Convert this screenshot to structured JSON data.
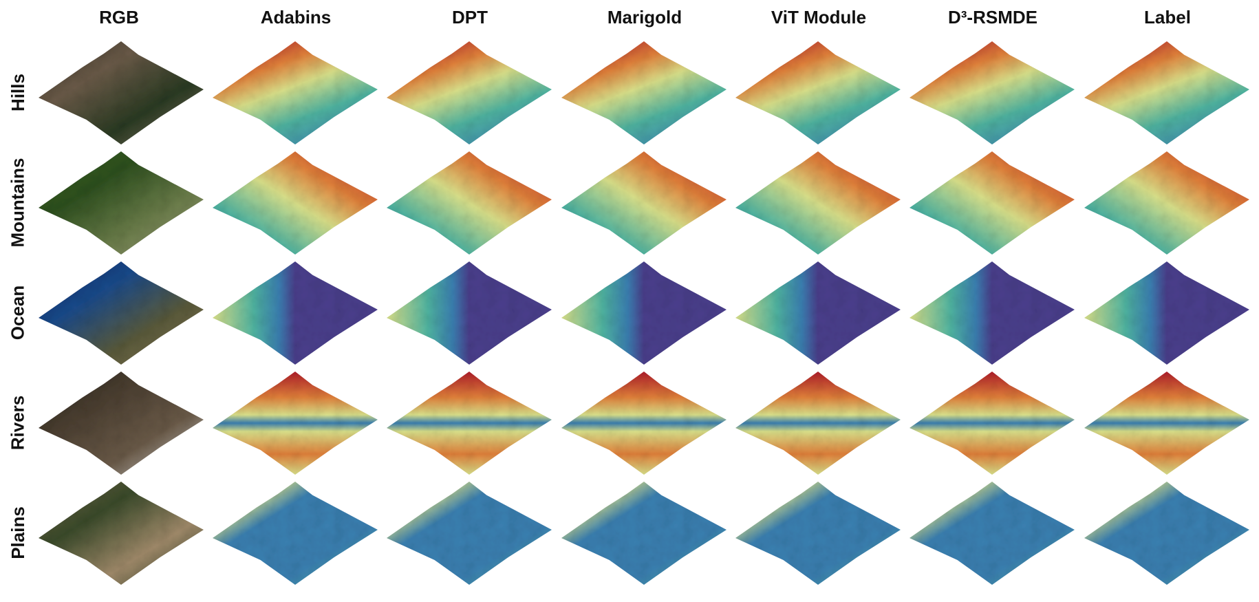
{
  "columns": [
    "RGB",
    "Adabins",
    "DPT",
    "Marigold",
    "ViT Module",
    "D³-RSMDE",
    "Label"
  ],
  "rows": [
    "Hills",
    "Mountains",
    "Ocean",
    "Rivers",
    "Plains"
  ],
  "palette": {
    "low": "#4a3f8c",
    "mid_low": "#3a7fb0",
    "mid": "#4fb3a0",
    "mid_high": "#d9e08a",
    "high": "#e0803a",
    "peak": "#b01e2a"
  },
  "rgb_palettes": {
    "Hills": [
      "#3a3428",
      "#6a5a48",
      "#2a3a22",
      "#8a7a6a"
    ],
    "Mountains": [
      "#3f6b2a",
      "#2d4f1e",
      "#6b7d4a",
      "#9a9a7a"
    ],
    "Ocean": [
      "#0a2a6a",
      "#1a4a8a",
      "#5a5a3a",
      "#8a7a5a"
    ],
    "Rivers": [
      "#2a2620",
      "#4a3e30",
      "#6a5a48",
      "#d8d8d8"
    ],
    "Plains": [
      "#7a6a4a",
      "#3a4a2a",
      "#a08a6a",
      "#2a3a20"
    ]
  }
}
